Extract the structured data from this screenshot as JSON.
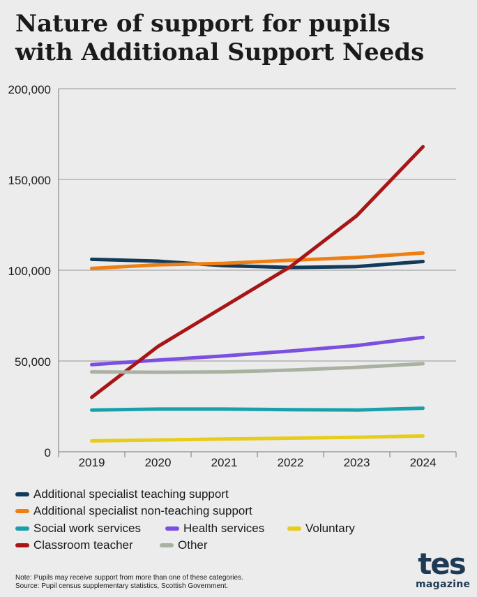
{
  "title_lines": [
    "Nature of support for pupils",
    "with Additional Support Needs"
  ],
  "chart_data": {
    "type": "line",
    "x": [
      "2019",
      "2020",
      "2021",
      "2022",
      "2023",
      "2024"
    ],
    "ylim": [
      0,
      200000
    ],
    "yticks": [
      0,
      50000,
      100000,
      150000,
      200000
    ],
    "ytick_labels": [
      "0",
      "50,000",
      "100,000",
      "150,000",
      "200,000"
    ],
    "grid": "horizontal",
    "legend_position": "bottom",
    "series": [
      {
        "name": "Additional specialist teaching support",
        "color": "#123a5a",
        "values": [
          106000,
          105000,
          102500,
          101500,
          102000,
          104800
        ]
      },
      {
        "name": "Additional specialist non-teaching support",
        "color": "#f07f13",
        "values": [
          101000,
          103000,
          103800,
          105500,
          107000,
          109500
        ]
      },
      {
        "name": "Social work services",
        "color": "#1aa0ab",
        "values": [
          23000,
          23500,
          23500,
          23200,
          23000,
          24000
        ]
      },
      {
        "name": "Health services",
        "color": "#7b4fe0",
        "values": [
          48000,
          50500,
          52800,
          55500,
          58500,
          63000
        ]
      },
      {
        "name": "Voluntary",
        "color": "#e8cc1c",
        "values": [
          6000,
          6500,
          7000,
          7500,
          8000,
          8700
        ]
      },
      {
        "name": "Classroom teacher",
        "color": "#a81515",
        "values": [
          30000,
          58000,
          80000,
          102000,
          130000,
          168000
        ]
      },
      {
        "name": "Other",
        "color": "#a9b1a0",
        "values": [
          44000,
          43800,
          44000,
          45000,
          46500,
          48500
        ]
      }
    ]
  },
  "note_lines": [
    "Note:  Pupils may receive support from more than one of these categories.",
    "Source: Pupil census supplementary statistics, Scottish Government."
  ],
  "logo": {
    "main": "tes",
    "sub": "magazine"
  }
}
